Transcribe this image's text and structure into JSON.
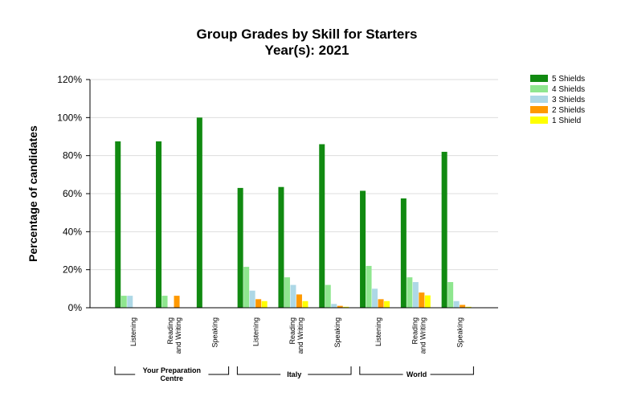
{
  "chart_data": {
    "type": "bar",
    "title": "Group Grades by Skill for Starters",
    "subtitle": "Year(s): 2021",
    "ylabel": "Percentage of candidates",
    "xlabel": "",
    "ylim": [
      0,
      120
    ],
    "yticks": [
      "0%",
      "20%",
      "40%",
      "60%",
      "80%",
      "100%",
      "120%"
    ],
    "ytick_values": [
      0,
      20,
      40,
      60,
      80,
      100,
      120
    ],
    "grid": true,
    "legend_position": "top-right",
    "groups": [
      {
        "name": "Your Preparation Centre",
        "categories": [
          "Listening",
          "Reading and Writing",
          "Speaking"
        ]
      },
      {
        "name": "Italy",
        "categories": [
          "Listening",
          "Reading and Writing",
          "Speaking"
        ]
      },
      {
        "name": "World",
        "categories": [
          "Listening",
          "Reading and Writing",
          "Speaking"
        ]
      }
    ],
    "categories": [
      "Listening",
      "Reading and Writing",
      "Speaking",
      "Listening",
      "Reading and Writing",
      "Speaking",
      "Listening",
      "Reading and Writing",
      "Speaking"
    ],
    "series": [
      {
        "name": "5 Shields",
        "color": "#118a11",
        "values": [
          87.5,
          87.5,
          100,
          63,
          63.5,
          86,
          61.5,
          57.5,
          82
        ]
      },
      {
        "name": "4 Shields",
        "color": "#8fe68f",
        "values": [
          6.3,
          6.3,
          0,
          21.5,
          16,
          12,
          22,
          16,
          13.5
        ]
      },
      {
        "name": "3 Shields",
        "color": "#add8e6",
        "values": [
          6.3,
          0,
          0,
          9,
          12,
          2,
          10,
          13.5,
          3.5
        ]
      },
      {
        "name": "2 Shields",
        "color": "#ff9900",
        "values": [
          0,
          6.3,
          0,
          4.5,
          7,
          1,
          4.5,
          8,
          1.5
        ]
      },
      {
        "name": "1 Shield",
        "color": "#ffff00",
        "values": [
          0,
          0,
          0,
          3.5,
          3.5,
          0.5,
          3.5,
          6.5,
          0.5
        ]
      }
    ]
  }
}
